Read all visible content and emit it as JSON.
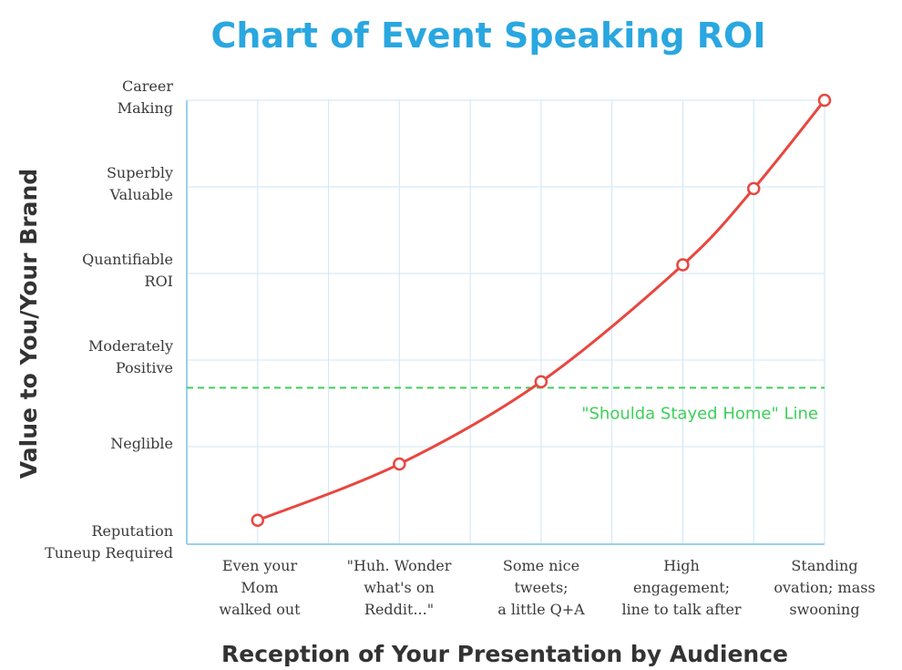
{
  "chart_data": {
    "type": "line",
    "title": "Chart of Event Speaking ROI",
    "xlabel": "Reception of Your Presentation by Audience",
    "ylabel": "Value to You/Your Brand",
    "categories": [
      [
        "Even your",
        "Mom",
        "walked out"
      ],
      [
        "\"Huh. Wonder",
        "what's on",
        "Reddit...\""
      ],
      [
        "Some nice",
        "tweets;",
        "a little Q+A"
      ],
      [
        "High",
        "engagement;",
        "line to talk after"
      ],
      [
        "Standing",
        "ovation; mass",
        "swooning"
      ]
    ],
    "y_levels": [
      [
        "Reputation",
        "Tuneup Required"
      ],
      [
        "Neglible"
      ],
      [
        "Moderately",
        "Positive"
      ],
      [
        "Quantifiable",
        "ROI"
      ],
      [
        "Superbly",
        "Valuable"
      ],
      [
        "Career",
        "Making"
      ]
    ],
    "x_range": [
      0,
      8
    ],
    "y_range": [
      0,
      5
    ],
    "points": [
      {
        "x": 1,
        "y": 0.15
      },
      {
        "x": 3,
        "y": 0.8
      },
      {
        "x": 5,
        "y": 1.75
      },
      {
        "x": 7,
        "y": 3.1
      },
      {
        "x": 8,
        "y": 3.98
      },
      {
        "x": 9,
        "y": 5.0
      }
    ],
    "threshold": {
      "y": 1.68,
      "label": "\"Shoulda Stayed Home\" Line"
    },
    "grid": true,
    "colors": {
      "title": "#2aa7e0",
      "line": "#e8473f",
      "threshold": "#3ecf5a",
      "grid": "#cfe6f5",
      "axis": "#9ad0ee",
      "text": "#3a3a3a"
    }
  }
}
